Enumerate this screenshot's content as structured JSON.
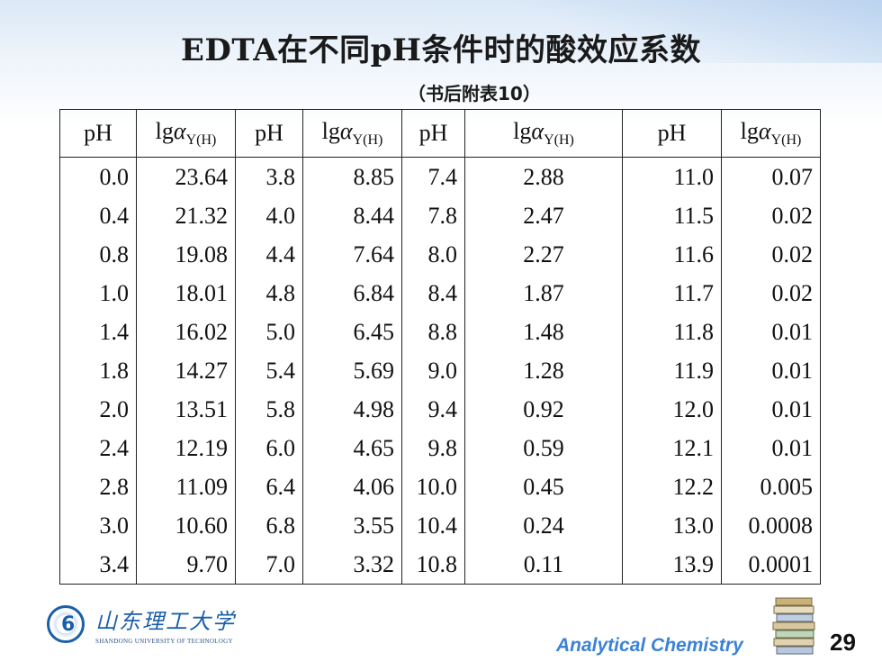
{
  "title": "EDTA在不同pH条件时的酸效应系数",
  "subtitle": "（书后附表10）",
  "table": {
    "header_ph": "pH",
    "header_lg": "lg",
    "header_alpha": "α",
    "header_sub": "Y(H)",
    "rows": [
      [
        "0.0",
        "23.64",
        "3.8",
        "8.85",
        "7.4",
        "2.88",
        "11.0",
        "0.07"
      ],
      [
        "0.4",
        "21.32",
        "4.0",
        "8.44",
        "7.8",
        "2.47",
        "11.5",
        "0.02"
      ],
      [
        "0.8",
        "19.08",
        "4.4",
        "7.64",
        "8.0",
        "2.27",
        "11.6",
        "0.02"
      ],
      [
        "1.0",
        "18.01",
        "4.8",
        "6.84",
        "8.4",
        "1.87",
        "11.7",
        "0.02"
      ],
      [
        "1.4",
        "16.02",
        "5.0",
        "6.45",
        "8.8",
        "1.48",
        "11.8",
        "0.01"
      ],
      [
        "1.8",
        "14.27",
        "5.4",
        "5.69",
        "9.0",
        "1.28",
        "11.9",
        "0.01"
      ],
      [
        "2.0",
        "13.51",
        "5.8",
        "4.98",
        "9.4",
        "0.92",
        "12.0",
        "0.01"
      ],
      [
        "2.4",
        "12.19",
        "6.0",
        "4.65",
        "9.8",
        "0.59",
        "12.1",
        "0.01"
      ],
      [
        "2.8",
        "11.09",
        "6.4",
        "4.06",
        "10.0",
        "0.45",
        "12.2",
        "0.005"
      ],
      [
        "3.0",
        "10.60",
        "6.8",
        "3.55",
        "10.4",
        "0.24",
        "13.0",
        "0.0008"
      ],
      [
        "3.4",
        "9.70",
        "7.0",
        "3.32",
        "10.8",
        "0.11",
        "13.9",
        "0.0001"
      ]
    ]
  },
  "logo": {
    "name_cn": "山东理工大学",
    "name_en": "SHANDONG UNIVERSITY OF TECHNOLOGY",
    "icon": "university-seal-icon"
  },
  "footer": {
    "course": "Analytical Chemistry",
    "page": "29",
    "icon": "book-stack-icon"
  },
  "colors": {
    "accent": "#3b82d6",
    "logo": "#1b5fa8",
    "text": "#111111"
  }
}
